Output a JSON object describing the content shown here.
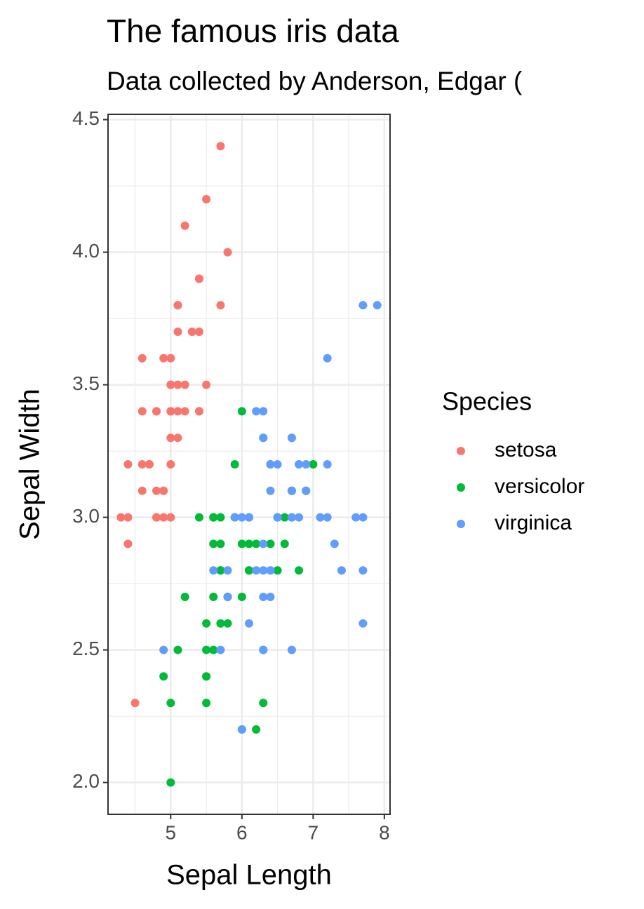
{
  "chart_data": {
    "type": "scatter",
    "title": "The famous iris data",
    "subtitle": "Data collected by Anderson, Edgar (",
    "x_label": "Sepal Length",
    "y_label": "Sepal Width",
    "legend_title": "Species",
    "legend": "right",
    "grid": true,
    "xlim": [
      4.12,
      8.08
    ],
    "ylim": [
      1.88,
      4.52
    ],
    "xticks": [
      5,
      6,
      7,
      8
    ],
    "yticks": [
      {
        "value": 2,
        "label": "2.0"
      },
      2.5,
      {
        "value": 3,
        "label": "3.0"
      },
      3.5,
      {
        "value": 4,
        "label": "4.0"
      },
      4.5
    ],
    "series": [
      {
        "name": "setosa",
        "color": "#F8766D",
        "x": [
          5.1,
          4.9,
          4.7,
          4.6,
          5.0,
          5.4,
          4.6,
          5.0,
          4.4,
          4.9,
          5.4,
          4.8,
          4.8,
          4.3,
          5.8,
          5.7,
          5.4,
          5.1,
          5.7,
          5.1,
          5.4,
          5.1,
          4.6,
          5.1,
          4.8,
          5.0,
          5.0,
          5.2,
          5.2,
          4.7,
          4.8,
          5.4,
          5.2,
          5.5,
          4.9,
          5.0,
          5.5,
          4.9,
          4.4,
          5.1,
          5.0,
          4.5,
          4.4,
          5.0,
          5.1,
          4.8,
          5.1,
          4.6,
          5.3,
          5.0
        ],
        "y": [
          3.5,
          3.0,
          3.2,
          3.1,
          3.6,
          3.9,
          3.4,
          3.4,
          2.9,
          3.1,
          3.7,
          3.4,
          3.0,
          3.0,
          4.0,
          4.4,
          3.9,
          3.5,
          3.8,
          3.8,
          3.4,
          3.7,
          3.6,
          3.3,
          3.4,
          3.0,
          3.4,
          3.5,
          3.4,
          3.2,
          3.1,
          3.4,
          4.1,
          4.2,
          3.1,
          3.2,
          3.5,
          3.6,
          3.0,
          3.4,
          3.5,
          2.3,
          3.2,
          3.5,
          3.8,
          3.0,
          3.8,
          3.2,
          3.7,
          3.3
        ]
      },
      {
        "name": "versicolor",
        "color": "#00BA38",
        "x": [
          7.0,
          6.4,
          6.9,
          5.5,
          6.5,
          5.7,
          6.3,
          4.9,
          6.6,
          5.2,
          5.0,
          5.9,
          6.0,
          6.1,
          5.6,
          6.7,
          5.6,
          5.8,
          6.2,
          5.6,
          5.9,
          6.1,
          6.3,
          6.1,
          6.4,
          6.6,
          6.8,
          6.7,
          6.0,
          5.7,
          5.5,
          5.5,
          5.8,
          6.0,
          5.4,
          6.0,
          6.7,
          6.3,
          5.6,
          5.5,
          5.5,
          6.1,
          5.8,
          5.0,
          5.6,
          5.7,
          5.7,
          6.2,
          5.1,
          5.7
        ],
        "y": [
          3.2,
          3.2,
          3.1,
          2.3,
          2.8,
          2.8,
          3.3,
          2.4,
          2.9,
          2.7,
          2.0,
          3.0,
          2.2,
          2.9,
          2.9,
          3.1,
          3.0,
          2.7,
          2.2,
          2.5,
          3.2,
          2.8,
          2.5,
          2.8,
          2.9,
          3.0,
          2.8,
          3.0,
          2.9,
          2.6,
          2.4,
          2.4,
          2.7,
          2.7,
          3.0,
          3.4,
          3.1,
          2.3,
          3.0,
          2.5,
          2.6,
          3.0,
          2.6,
          2.3,
          2.7,
          3.0,
          2.9,
          2.9,
          2.5,
          2.8
        ]
      },
      {
        "name": "virginica",
        "color": "#619CFF",
        "x": [
          6.3,
          5.8,
          7.1,
          6.3,
          6.5,
          7.6,
          4.9,
          7.3,
          6.7,
          7.2,
          6.5,
          6.4,
          6.8,
          5.7,
          5.8,
          6.4,
          6.5,
          7.7,
          7.7,
          6.0,
          6.9,
          5.6,
          7.7,
          6.3,
          6.7,
          7.2,
          6.2,
          6.1,
          6.4,
          7.2,
          7.4,
          7.9,
          6.4,
          6.3,
          6.1,
          7.7,
          6.3,
          6.4,
          6.0,
          6.9,
          6.7,
          6.9,
          5.8,
          6.8,
          6.7,
          6.7,
          6.3,
          6.5,
          6.2,
          5.9
        ],
        "y": [
          3.3,
          2.7,
          3.0,
          2.9,
          3.0,
          3.0,
          2.5,
          2.9,
          2.5,
          3.6,
          3.2,
          2.7,
          3.0,
          2.5,
          2.8,
          3.2,
          3.0,
          3.8,
          2.6,
          2.2,
          3.2,
          2.8,
          2.8,
          2.7,
          3.3,
          3.2,
          2.8,
          3.0,
          2.8,
          3.0,
          2.8,
          3.8,
          2.8,
          2.8,
          2.6,
          3.0,
          3.4,
          3.1,
          3.0,
          3.1,
          3.1,
          3.1,
          2.7,
          3.2,
          3.3,
          3.0,
          2.5,
          3.0,
          3.4,
          3.0
        ]
      }
    ]
  }
}
